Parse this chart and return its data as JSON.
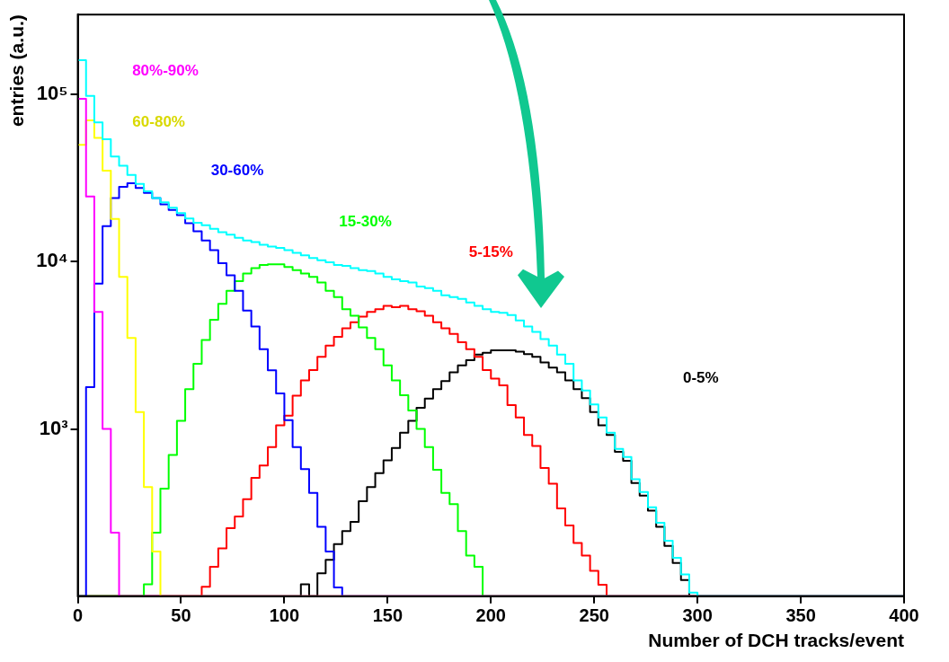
{
  "chart_data": {
    "type": "histogram",
    "xlabel": "Number of DCH tracks/event",
    "ylabel": "entries (a.u.)",
    "bins": [
      0,
      4,
      8,
      12,
      16,
      20,
      24,
      28,
      32,
      36,
      40,
      44,
      48,
      52,
      56,
      60,
      64,
      68,
      72,
      76,
      80,
      84,
      88,
      92,
      96,
      100,
      104,
      108,
      112,
      116,
      120,
      124,
      128,
      132,
      136,
      140,
      144,
      148,
      152,
      156,
      160,
      164,
      168,
      172,
      176,
      180,
      184,
      188,
      192,
      196,
      200,
      204,
      208,
      212,
      216,
      220,
      224,
      228,
      232,
      236,
      240,
      244,
      248,
      252,
      256,
      260,
      264,
      268,
      272,
      276,
      280,
      284,
      288,
      292,
      296,
      300,
      304,
      308,
      312,
      316,
      320,
      324,
      328,
      332,
      336,
      340,
      344,
      348,
      352,
      356,
      360,
      364,
      368,
      372,
      376,
      380,
      384,
      388,
      392,
      396,
      400
    ],
    "series": [
      {
        "color": "#00ffff",
        "values": [
          160000,
          98000,
          68000,
          54000,
          42500,
          37500,
          33000,
          29200,
          26300,
          24000,
          22600,
          21000,
          19500,
          18100,
          17100,
          16500,
          15700,
          15000,
          14500,
          13900,
          13400,
          13100,
          12600,
          12300,
          12100,
          11700,
          11300,
          10900,
          10500,
          10200,
          9900,
          9550,
          9450,
          9150,
          8900,
          8800,
          8500,
          8100,
          7850,
          7650,
          7500,
          7100,
          6950,
          6700,
          6300,
          6150,
          6000,
          5700,
          5450,
          5200,
          5000,
          4950,
          4800,
          4450,
          4100,
          3800,
          3450,
          3150,
          2780,
          2450,
          1950,
          1700,
          1400,
          1170,
          950,
          760,
          680,
          500,
          420,
          340,
          275,
          215,
          170,
          135,
          105,
          null,
          null,
          null,
          null,
          null,
          null,
          null,
          null,
          null,
          null,
          null,
          null,
          null,
          null,
          null,
          null,
          null,
          null,
          null,
          null,
          null,
          null,
          null,
          null,
          null
        ]
      },
      {
        "name": "80%-90%",
        "color": "#ff00ff",
        "values": [
          94000,
          24500,
          5000,
          1000,
          240,
          null,
          null,
          null,
          null,
          null,
          null,
          null,
          null,
          null,
          null,
          null,
          null,
          null,
          null,
          null,
          null,
          null,
          null,
          null,
          null,
          null,
          null,
          null,
          null,
          null,
          null,
          null,
          null,
          null,
          null,
          null,
          null,
          null,
          null,
          null,
          null,
          null,
          null,
          null,
          null,
          null,
          null,
          null,
          null,
          null,
          null,
          null,
          null,
          null,
          null,
          null,
          null,
          null,
          null,
          null,
          null,
          null,
          null,
          null,
          null,
          null,
          null,
          null,
          null,
          null,
          null,
          null,
          null,
          null,
          null,
          null,
          null,
          null,
          null,
          null,
          null,
          null,
          null,
          null,
          null,
          null,
          null,
          null,
          null,
          null,
          null,
          null,
          null,
          null,
          null,
          null,
          null,
          null,
          null,
          null
        ]
      },
      {
        "name": "60-80%",
        "color": "#ffff00",
        "values": [
          50000,
          70000,
          55000,
          35000,
          18000,
          8100,
          3500,
          1260,
          450,
          185,
          null,
          null,
          null,
          null,
          null,
          null,
          null,
          null,
          null,
          null,
          null,
          null,
          null,
          null,
          null,
          null,
          null,
          null,
          null,
          null,
          null,
          null,
          null,
          null,
          null,
          null,
          null,
          null,
          null,
          null,
          null,
          null,
          null,
          null,
          null,
          null,
          null,
          null,
          null,
          null,
          null,
          null,
          null,
          null,
          null,
          null,
          null,
          null,
          null,
          null,
          null,
          null,
          null,
          null,
          null,
          null,
          null,
          null,
          null,
          null,
          null,
          null,
          null,
          null,
          null,
          null,
          null,
          null,
          null,
          null,
          null,
          null,
          null,
          null,
          null,
          null,
          null,
          null,
          null,
          null,
          null,
          null,
          null,
          null,
          null,
          null,
          null,
          null,
          null,
          null
        ]
      },
      {
        "name": "30-60%",
        "color": "#0000ff",
        "values": [
          null,
          1780,
          7400,
          16300,
          24000,
          28000,
          29400,
          27600,
          25800,
          24000,
          22000,
          20400,
          19000,
          17000,
          15200,
          13400,
          11700,
          9800,
          8300,
          6700,
          5100,
          4100,
          3000,
          2240,
          1630,
          1130,
          780,
          575,
          415,
          260,
          185,
          113,
          null,
          null,
          null,
          null,
          null,
          null,
          null,
          null,
          null,
          null,
          null,
          null,
          null,
          null,
          null,
          null,
          null,
          null,
          null,
          null,
          null,
          null,
          null,
          null,
          null,
          null,
          null,
          null,
          null,
          null,
          null,
          null,
          null,
          null,
          null,
          null,
          null,
          null,
          null,
          null,
          null,
          null,
          null,
          null,
          null,
          null,
          null,
          null,
          null,
          null,
          null,
          null,
          null,
          null,
          null,
          null,
          null,
          null,
          null,
          null,
          null,
          null,
          null,
          null,
          null,
          null,
          null,
          null
        ]
      },
      {
        "name": "15-30%",
        "color": "#00ff00",
        "values": [
          null,
          null,
          null,
          null,
          null,
          null,
          null,
          null,
          118,
          240,
          440,
          700,
          1120,
          1730,
          2450,
          3400,
          4500,
          5600,
          6700,
          7650,
          8500,
          9150,
          9550,
          9650,
          9650,
          9300,
          8900,
          8500,
          8100,
          7500,
          6700,
          6150,
          5200,
          4750,
          4050,
          3500,
          3000,
          2400,
          1950,
          1590,
          1290,
          1000,
          780,
          570,
          415,
          355,
          245,
          175,
          150,
          null,
          null,
          null,
          null,
          null,
          null,
          null,
          null,
          null,
          null,
          null,
          null,
          null,
          null,
          null,
          null,
          null,
          null,
          null,
          null,
          null,
          null,
          null,
          null,
          null,
          null,
          null,
          null,
          null,
          null,
          null,
          null,
          null,
          null,
          null,
          null,
          null,
          null,
          null,
          null,
          null,
          null,
          null,
          null,
          null,
          null,
          null,
          null,
          null,
          null,
          null
        ]
      },
      {
        "name": "5-15%",
        "color": "#ff0000",
        "values": [
          null,
          null,
          null,
          null,
          null,
          null,
          null,
          null,
          null,
          null,
          null,
          null,
          null,
          null,
          null,
          114,
          150,
          193,
          255,
          300,
          380,
          510,
          605,
          780,
          1050,
          1200,
          1580,
          1950,
          2250,
          2700,
          3150,
          3550,
          4000,
          4350,
          4700,
          5000,
          5200,
          5450,
          5350,
          5450,
          5200,
          5050,
          4750,
          4350,
          4000,
          3700,
          3300,
          3000,
          2700,
          2250,
          2000,
          1820,
          1390,
          1170,
          920,
          790,
          585,
          470,
          335,
          265,
          208,
          175,
          142,
          117,
          null,
          null,
          null,
          null,
          null,
          null,
          null,
          null,
          null,
          null,
          null,
          null,
          null,
          null,
          null,
          null,
          null,
          null,
          null,
          null,
          null,
          null,
          null,
          null,
          null,
          null,
          null,
          null,
          null,
          null,
          null,
          null,
          null,
          null,
          null,
          null
        ]
      },
      {
        "name": "0-5%",
        "color": "#000000",
        "values": [
          null,
          null,
          null,
          null,
          null,
          null,
          null,
          null,
          null,
          null,
          null,
          null,
          null,
          null,
          null,
          null,
          null,
          null,
          null,
          null,
          null,
          null,
          null,
          null,
          null,
          null,
          null,
          118,
          null,
          137,
          165,
          205,
          245,
          278,
          370,
          450,
          545,
          650,
          770,
          950,
          1120,
          1340,
          1520,
          1730,
          1930,
          2180,
          2400,
          2580,
          2780,
          2850,
          2950,
          2950,
          2950,
          2900,
          2800,
          2700,
          2500,
          2330,
          2180,
          1950,
          1730,
          1530,
          1260,
          1050,
          920,
          730,
          645,
          475,
          400,
          325,
          260,
          200,
          158,
          125,
          null,
          null,
          null,
          null,
          null,
          null,
          null,
          null,
          null,
          null,
          null,
          null,
          null,
          null,
          null,
          null,
          null,
          null,
          null,
          null,
          null,
          null,
          null,
          null,
          null,
          null
        ]
      }
    ],
    "xlim": [
      0,
      400
    ],
    "xticks": [
      0,
      50,
      100,
      150,
      200,
      250,
      300,
      350,
      400
    ],
    "ylim": [
      100,
      300000
    ],
    "yticks": [
      {
        "value": 1000,
        "label": "10³"
      },
      {
        "value": 10000,
        "label": "10⁴"
      },
      {
        "value": 100000,
        "label": "10⁵"
      }
    ],
    "log": true
  }
}
